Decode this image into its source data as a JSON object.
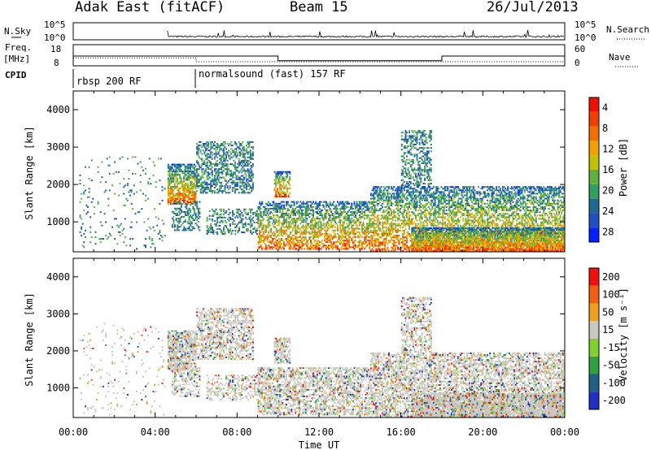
{
  "header": {
    "station": "Adak East (fitACF)",
    "beam": "Beam 15",
    "date": "26/Jul/2013"
  },
  "nsky_panel": {
    "left_label": "N.Sky",
    "right_label": "N.Search",
    "y_ticks": [
      "10^5",
      "10^0"
    ],
    "y_ticks_right": [
      "10^5",
      "10^0"
    ]
  },
  "freq_panel": {
    "left_label_1": "Freq.",
    "left_label_2": "[MHz]",
    "y_ticks": [
      "18",
      "8"
    ],
    "right_label": "Nave",
    "y_ticks_right": [
      "60",
      "0"
    ],
    "freq_steps": [
      {
        "t": 0,
        "v": 12.6
      },
      {
        "t": 6,
        "v": 12.6
      },
      {
        "t": 10,
        "v": 10.2
      },
      {
        "t": 18,
        "v": 12.6
      },
      {
        "t": 24,
        "v": 12.6
      }
    ],
    "nave_steps": [
      {
        "t": 0,
        "v": 22
      },
      {
        "t": 6,
        "v": 10
      },
      {
        "t": 24,
        "v": 10
      }
    ]
  },
  "cpid": {
    "label": "CPID",
    "segments": [
      {
        "text": "rbsp 200 RF",
        "t_start": 0,
        "t_end": 6
      },
      {
        "text": "normalsound (fast) 157 RF",
        "t_start": 6,
        "t_end": 24
      }
    ]
  },
  "chart_data": [
    {
      "type": "heatmap",
      "ylabel": "Slant Range [km]",
      "xlabel": "Time UT",
      "x_ticks": [
        "00:00",
        "04:00",
        "08:00",
        "12:00",
        "16:00",
        "20:00",
        "00:00"
      ],
      "xlim_hours": [
        0,
        24
      ],
      "y_ticks": [
        1000,
        2000,
        3000,
        4000
      ],
      "ylim": [
        200,
        4500
      ],
      "colorbar": {
        "label": "Power [dB]",
        "ticks": [
          "4",
          "8",
          "12",
          "16",
          "20",
          "24",
          "28"
        ],
        "colors": [
          "#0020ff",
          "#2050c0",
          "#206890",
          "#30a060",
          "#60b040",
          "#c0c000",
          "#f0a000",
          "#f07000",
          "#f04000",
          "#f01000"
        ]
      }
    },
    {
      "type": "heatmap",
      "ylabel": "Slant Range [km]",
      "xlabel": "Time UT",
      "x_ticks": [
        "00:00",
        "04:00",
        "08:00",
        "12:00",
        "16:00",
        "20:00",
        "00:00"
      ],
      "xlim_hours": [
        0,
        24
      ],
      "y_ticks": [
        1000,
        2000,
        3000,
        4000
      ],
      "ylim": [
        200,
        4500
      ],
      "colorbar": {
        "label": "Velocity [m s⁻¹]",
        "ticks": [
          "200",
          "100",
          "50",
          "15",
          "-15",
          "-50",
          "-100",
          "-200"
        ],
        "colors": [
          "#2030c0",
          "#206080",
          "#30a040",
          "#80d030",
          "#c8c8c0",
          "#f0a020",
          "#f06010",
          "#f01010"
        ]
      }
    }
  ],
  "x_axis_title": "Time UT"
}
